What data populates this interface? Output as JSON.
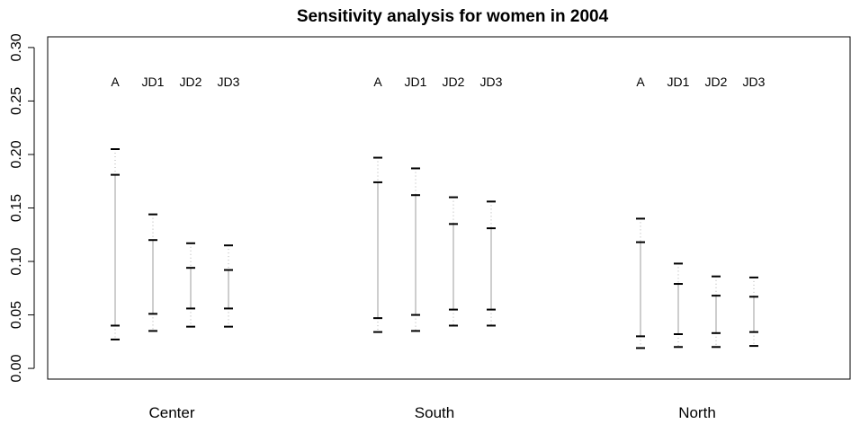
{
  "chart_data": {
    "type": "interval",
    "title": "Sensitivity analysis for women in 2004",
    "xlabel": "",
    "ylabel": "",
    "ylim": [
      -0.01,
      0.31
    ],
    "yticks": [
      0.0,
      0.05,
      0.1,
      0.15,
      0.2,
      0.25,
      0.3
    ],
    "ytick_labels": [
      "0.00",
      "0.05",
      "0.10",
      "0.15",
      "0.20",
      "0.25",
      "0.30"
    ],
    "grid": false,
    "legend": "none",
    "groups": [
      "Center",
      "South",
      "North"
    ],
    "series": [
      "A",
      "JD1",
      "JD2",
      "JD3"
    ],
    "intervals": [
      {
        "group": "Center",
        "series": "A",
        "outer_low": 0.027,
        "inner_low": 0.04,
        "inner_high": 0.181,
        "outer_high": 0.205
      },
      {
        "group": "Center",
        "series": "JD1",
        "outer_low": 0.035,
        "inner_low": 0.051,
        "inner_high": 0.12,
        "outer_high": 0.144
      },
      {
        "group": "Center",
        "series": "JD2",
        "outer_low": 0.039,
        "inner_low": 0.056,
        "inner_high": 0.094,
        "outer_high": 0.117
      },
      {
        "group": "Center",
        "series": "JD3",
        "outer_low": 0.039,
        "inner_low": 0.056,
        "inner_high": 0.092,
        "outer_high": 0.115
      },
      {
        "group": "South",
        "series": "A",
        "outer_low": 0.034,
        "inner_low": 0.047,
        "inner_high": 0.174,
        "outer_high": 0.197
      },
      {
        "group": "South",
        "series": "JD1",
        "outer_low": 0.035,
        "inner_low": 0.05,
        "inner_high": 0.162,
        "outer_high": 0.187
      },
      {
        "group": "South",
        "series": "JD2",
        "outer_low": 0.04,
        "inner_low": 0.055,
        "inner_high": 0.135,
        "outer_high": 0.16
      },
      {
        "group": "South",
        "series": "JD3",
        "outer_low": 0.04,
        "inner_low": 0.055,
        "inner_high": 0.131,
        "outer_high": 0.156
      },
      {
        "group": "North",
        "series": "A",
        "outer_low": 0.019,
        "inner_low": 0.03,
        "inner_high": 0.118,
        "outer_high": 0.14
      },
      {
        "group": "North",
        "series": "JD1",
        "outer_low": 0.02,
        "inner_low": 0.032,
        "inner_high": 0.079,
        "outer_high": 0.098
      },
      {
        "group": "North",
        "series": "JD2",
        "outer_low": 0.02,
        "inner_low": 0.033,
        "inner_high": 0.068,
        "outer_high": 0.086
      },
      {
        "group": "North",
        "series": "JD3",
        "outer_low": 0.021,
        "inner_low": 0.034,
        "inner_high": 0.067,
        "outer_high": 0.085
      }
    ],
    "colors": {
      "inner_line": "#bdbdbd",
      "outer_line": "#b0b0b0",
      "tick": "#000000",
      "axis": "#000000"
    }
  }
}
